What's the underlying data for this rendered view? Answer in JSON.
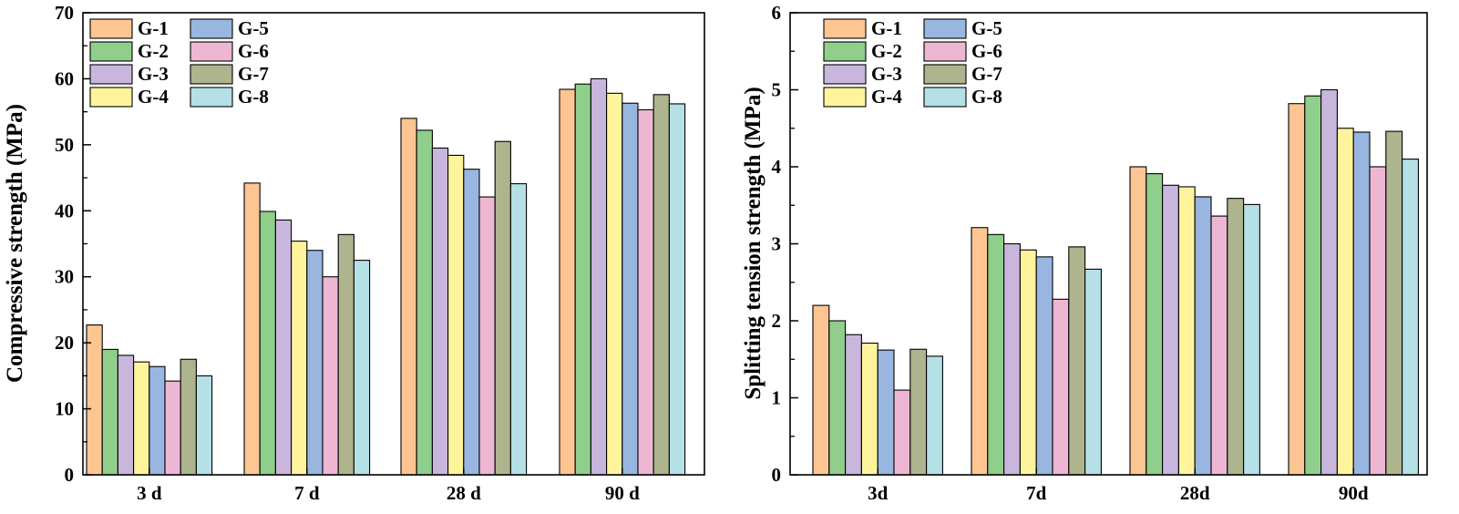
{
  "chart_data": [
    {
      "type": "bar",
      "title": "",
      "xlabel": "",
      "ylabel": "Compressive strength (MPa)",
      "ylim": [
        0,
        70
      ],
      "yticks": [
        0,
        10,
        20,
        30,
        40,
        50,
        60,
        70
      ],
      "categories": [
        "3 d",
        "7 d",
        "28 d",
        "90 d"
      ],
      "legend_position": "top-left",
      "series": [
        {
          "name": "G-1",
          "color": "#FCC592",
          "values": [
            22.7,
            44.2,
            54.0,
            58.4
          ]
        },
        {
          "name": "G-2",
          "color": "#8FCE8B",
          "values": [
            19.0,
            39.9,
            52.2,
            59.2
          ]
        },
        {
          "name": "G-3",
          "color": "#C9B6DC",
          "values": [
            18.1,
            38.6,
            49.5,
            60.0
          ]
        },
        {
          "name": "G-4",
          "color": "#FFF49C",
          "values": [
            17.1,
            35.4,
            48.4,
            57.8
          ]
        },
        {
          "name": "G-5",
          "color": "#98B6E0",
          "values": [
            16.4,
            34.0,
            46.3,
            56.3
          ]
        },
        {
          "name": "G-6",
          "color": "#EDB7D3",
          "values": [
            14.2,
            30.0,
            42.1,
            55.3
          ]
        },
        {
          "name": "G-7",
          "color": "#ADB48E",
          "values": [
            17.5,
            36.4,
            50.5,
            57.6
          ]
        },
        {
          "name": "G-8",
          "color": "#B4E0E6",
          "values": [
            15.0,
            32.5,
            44.1,
            56.2
          ]
        }
      ]
    },
    {
      "type": "bar",
      "title": "",
      "xlabel": "",
      "ylabel": "Splitting tension strength (MPa)",
      "ylim": [
        0,
        6
      ],
      "yticks": [
        0,
        1,
        2,
        3,
        4,
        5,
        6
      ],
      "categories": [
        "3d",
        "7d",
        "28d",
        "90d"
      ],
      "legend_position": "top-left",
      "series": [
        {
          "name": "G-1",
          "color": "#FCC592",
          "values": [
            2.2,
            3.21,
            4.0,
            4.82
          ]
        },
        {
          "name": "G-2",
          "color": "#8FCE8B",
          "values": [
            2.0,
            3.12,
            3.91,
            4.92
          ]
        },
        {
          "name": "G-3",
          "color": "#C9B6DC",
          "values": [
            1.82,
            3.0,
            3.76,
            5.0
          ]
        },
        {
          "name": "G-4",
          "color": "#FFF49C",
          "values": [
            1.71,
            2.92,
            3.74,
            4.5
          ]
        },
        {
          "name": "G-5",
          "color": "#98B6E0",
          "values": [
            1.62,
            2.83,
            3.61,
            4.45
          ]
        },
        {
          "name": "G-6",
          "color": "#EDB7D3",
          "values": [
            1.1,
            2.28,
            3.36,
            4.0
          ]
        },
        {
          "name": "G-7",
          "color": "#ADB48E",
          "values": [
            1.63,
            2.96,
            3.59,
            4.46
          ]
        },
        {
          "name": "G-8",
          "color": "#B4E0E6",
          "values": [
            1.54,
            2.67,
            3.51,
            4.1
          ]
        }
      ]
    }
  ]
}
